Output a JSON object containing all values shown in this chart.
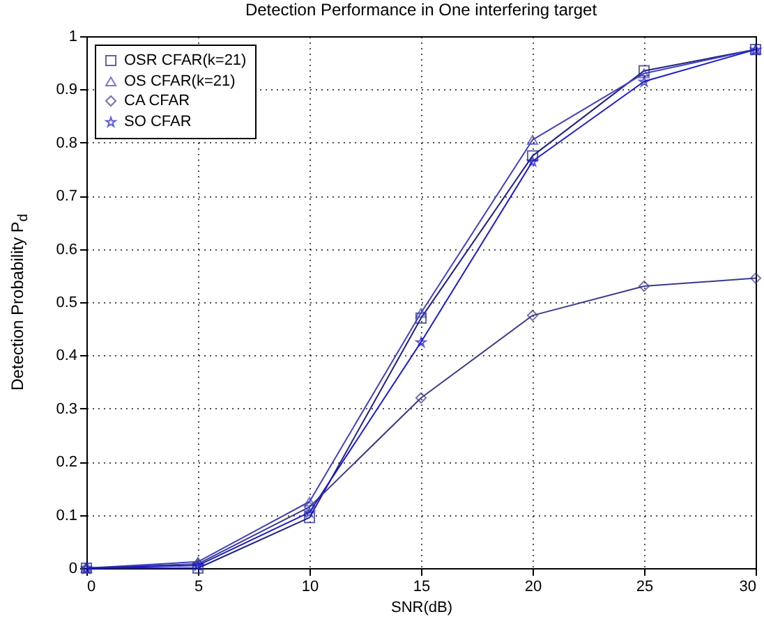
{
  "chart_data": {
    "type": "line",
    "title": "Detection Performance in One interfering target",
    "xlabel": "SNR(dB)",
    "ylabel": "Detection Probability P$_{d}$",
    "x": [
      0,
      5,
      10,
      15,
      20,
      25,
      30
    ],
    "series": [
      {
        "name": "OSR CFAR(k=21)",
        "color": "#202080",
        "marker": "square",
        "values": [
          0,
          0,
          0.095,
          0.47,
          0.775,
          0.935,
          0.975
        ]
      },
      {
        "name": "OS CFAR(k=21)",
        "color": "#4040c0",
        "marker": "triangle",
        "values": [
          0,
          0.012,
          0.125,
          0.48,
          0.805,
          0.93,
          0.975
        ]
      },
      {
        "name": "CA CFAR",
        "color": "#3a3a8a",
        "marker": "diamond",
        "values": [
          0,
          0.008,
          0.115,
          0.32,
          0.475,
          0.53,
          0.545
        ]
      },
      {
        "name": "SO CFAR",
        "color": "#1a1acc",
        "marker": "star",
        "values": [
          0,
          0.005,
          0.105,
          0.425,
          0.765,
          0.915,
          0.975
        ]
      }
    ],
    "xlim": [
      0,
      30
    ],
    "xticks": [
      0,
      5,
      10,
      15,
      20,
      25,
      30
    ],
    "ylim": [
      0,
      1
    ],
    "yticks": [
      0,
      0.1,
      0.2,
      0.3,
      0.4,
      0.5,
      0.6,
      0.7,
      0.8,
      0.9,
      1
    ],
    "grid": true,
    "legend": "top left",
    "line_style": "solid"
  }
}
